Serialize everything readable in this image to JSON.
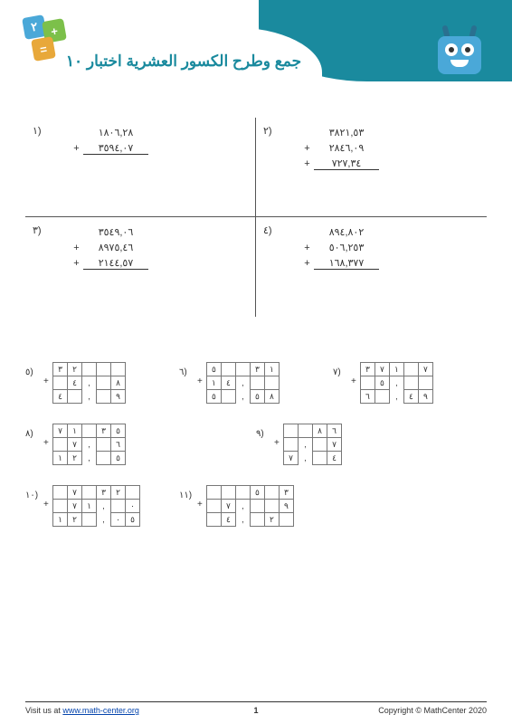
{
  "title": "جمع وطرح الكسور العشرية اختبار ١٠",
  "dice": [
    "٢",
    "+",
    "="
  ],
  "stacked": [
    {
      "num": "١)",
      "rows": [
        {
          "op": "",
          "v": "١٨٠٦,٢٨"
        },
        {
          "op": "+",
          "v": "٣٥٩٤,٠٧",
          "last": true
        }
      ]
    },
    {
      "num": "٢)",
      "rows": [
        {
          "op": "",
          "v": "٣٨٢١,٥٣"
        },
        {
          "op": "+",
          "v": "٢٨٤٦,٠٩"
        },
        {
          "op": "+",
          "v": "٧٢٧,٣٤",
          "last": true
        }
      ]
    },
    {
      "num": "٣)",
      "rows": [
        {
          "op": "",
          "v": "٣٥٤٩,٠٦"
        },
        {
          "op": "+",
          "v": "٨٩٧٥,٤٦"
        },
        {
          "op": "+",
          "v": "٢١٤٤,٥٧",
          "last": true
        }
      ]
    },
    {
      "num": "٤)",
      "rows": [
        {
          "op": "",
          "v": "٨٩٤,٨٠٢"
        },
        {
          "op": "+",
          "v": "٥٠٦,٢٥٣"
        },
        {
          "op": "+",
          "v": "١٦٨,٣٧٧",
          "last": true
        }
      ]
    }
  ],
  "grids": [
    {
      "num": "٥)",
      "w": "w3",
      "rows": [
        [
          "٣",
          "٢",
          "",
          "",
          ""
        ],
        [
          "",
          "٤",
          ",",
          "",
          "٨"
        ],
        [
          "٤",
          "",
          ",",
          "",
          "٩"
        ]
      ]
    },
    {
      "num": "٦)",
      "w": "w3",
      "rows": [
        [
          "٥",
          "",
          "",
          "٣",
          "١"
        ],
        [
          "١",
          "٤",
          ",",
          "",
          ""
        ],
        [
          "٥",
          "",
          ",",
          "٥",
          "٨"
        ]
      ]
    },
    {
      "num": "٧)",
      "w": "w3",
      "rows": [
        [
          "٣",
          "٧",
          "١",
          "",
          "٧"
        ],
        [
          "",
          "٥",
          ",",
          "",
          ""
        ],
        [
          "٦",
          "",
          ",",
          "٤",
          "٩"
        ]
      ]
    },
    {
      "num": "٨)",
      "w": "w2",
      "rows": [
        [
          "٧",
          "١",
          "",
          "٣",
          "٥"
        ],
        [
          "",
          "٧",
          ",",
          "",
          "٦"
        ],
        [
          "١",
          "٢",
          ",",
          "",
          "٥"
        ]
      ]
    },
    {
      "num": "٩)",
      "w": "w3",
      "rows": [
        [
          "",
          "",
          "٨",
          "٦"
        ],
        [
          "",
          ",",
          "",
          "٧"
        ],
        [
          "٧",
          ",",
          "",
          "٤"
        ]
      ]
    },
    {
      "num": "١٠)",
      "w": "w3",
      "rows": [
        [
          "",
          "٧",
          "",
          "٣",
          "٢",
          ""
        ],
        [
          "",
          "٧",
          "١",
          ",",
          "",
          "٠"
        ],
        [
          "١",
          "٢",
          "",
          ",",
          "٠",
          "٥"
        ]
      ]
    },
    {
      "num": "١١)",
      "w": "w2",
      "rows": [
        [
          "",
          "",
          "",
          "٥",
          "",
          "٣"
        ],
        [
          "",
          "٧",
          ",",
          "",
          "",
          "٩"
        ],
        [
          "",
          "٤",
          ",",
          "",
          "٢",
          ""
        ]
      ]
    }
  ],
  "footer": {
    "visit": "Visit us at ",
    "url": "www.math-center.org",
    "page": "1",
    "copyright": "Copyright © MathCenter 2020"
  }
}
